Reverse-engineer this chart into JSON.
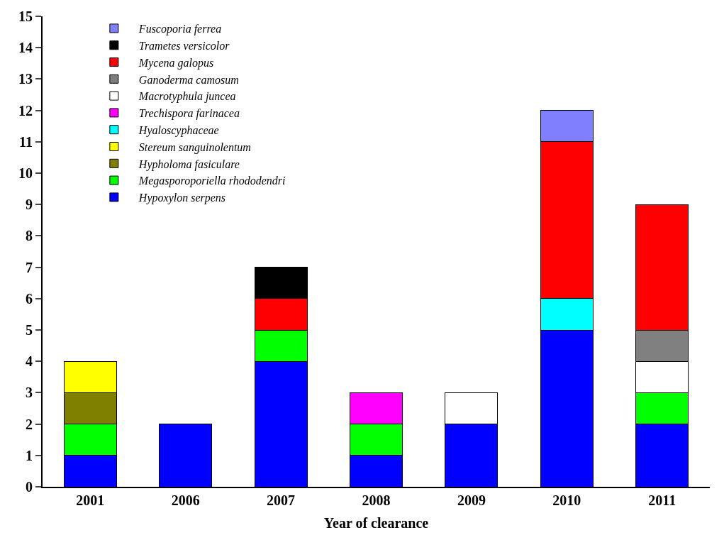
{
  "chart_data": {
    "type": "bar",
    "stacked": true,
    "xlabel": "Year of clearance",
    "categories": [
      "2001",
      "2006",
      "2007",
      "2008",
      "2009",
      "2010",
      "2011"
    ],
    "ylim": [
      0,
      15
    ],
    "yticks": [
      0,
      1,
      2,
      3,
      4,
      5,
      6,
      7,
      8,
      9,
      10,
      11,
      12,
      13,
      14,
      15
    ],
    "legend": "top left",
    "series": [
      {
        "name": "Hypoxylon serpens",
        "color": "#0000ff",
        "values": [
          1,
          2,
          4,
          1,
          2,
          5,
          2
        ]
      },
      {
        "name": "Megasporoporiella rhododendri",
        "color": "#00ff00",
        "values": [
          1,
          null,
          1,
          1,
          null,
          null,
          1
        ]
      },
      {
        "name": "Hypholoma fasiculare",
        "color": "#808000",
        "values": [
          1,
          null,
          null,
          null,
          null,
          null,
          null
        ]
      },
      {
        "name": "Stereum sanguinolentum",
        "color": "#ffff00",
        "values": [
          1,
          null,
          null,
          null,
          null,
          null,
          null
        ]
      },
      {
        "name": "Hyaloscyphaceae",
        "color": "#00ffff",
        "values": [
          null,
          null,
          null,
          null,
          null,
          1,
          null
        ]
      },
      {
        "name": "Trechispora farinacea",
        "color": "#ff00ff",
        "values": [
          null,
          null,
          null,
          1,
          null,
          null,
          null
        ]
      },
      {
        "name": "Macrotyphula juncea",
        "color": "#ffffff",
        "values": [
          null,
          null,
          null,
          null,
          1,
          null,
          1
        ]
      },
      {
        "name": "Ganoderma camosum",
        "color": "#808080",
        "values": [
          null,
          null,
          null,
          null,
          null,
          null,
          1
        ]
      },
      {
        "name": "Mycena galopus",
        "color": "#ff0000",
        "values": [
          null,
          null,
          1,
          null,
          null,
          5,
          4
        ]
      },
      {
        "name": "Trametes versicolor",
        "color": "#000000",
        "values": [
          null,
          null,
          1,
          null,
          null,
          null,
          null
        ]
      },
      {
        "name": "Fuscoporia ferrea",
        "color": "#8080ff",
        "values": [
          null,
          null,
          null,
          null,
          null,
          1,
          null
        ]
      }
    ]
  }
}
